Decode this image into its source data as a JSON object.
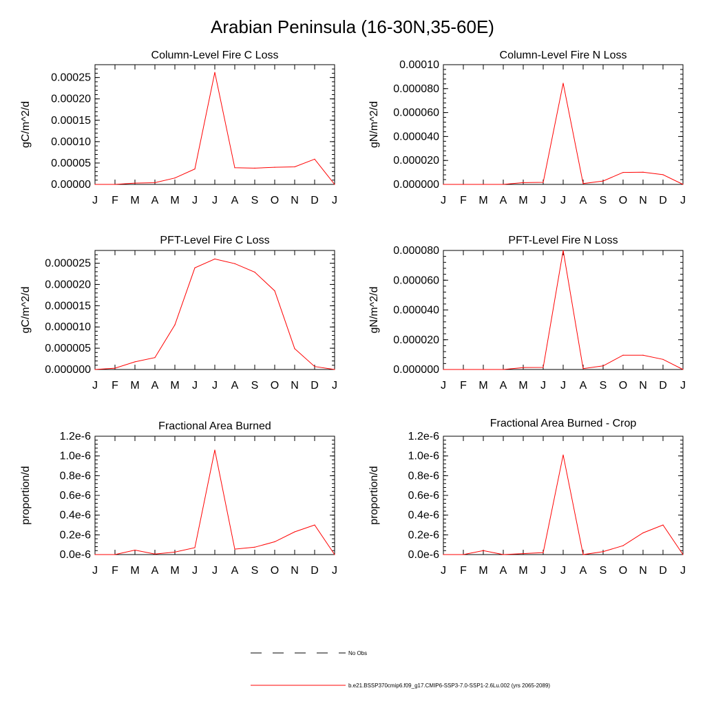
{
  "figure": {
    "title": "Arabian Peninsula (16-30N,35-60E)"
  },
  "legend": {
    "entries": [
      {
        "label": "No Obs",
        "color": "#000000",
        "dash": true
      },
      {
        "label": "b.e21.BSSP370cmip6.f09_g17.CMIP6-SSP3-7.0-SSP1-2.6Lu.002 (yrs 2065-2089)",
        "color": "#ff0000",
        "dash": false
      }
    ]
  },
  "chart_data": [
    {
      "type": "line",
      "title": "Column-Level Fire C Loss",
      "xlabel": "",
      "ylabel": "gC/m^2/d",
      "categories": [
        "J",
        "F",
        "M",
        "A",
        "M",
        "J",
        "J",
        "A",
        "S",
        "O",
        "N",
        "D",
        "J"
      ],
      "ylim": [
        0,
        0.00028
      ],
      "ytick_values": [
        0,
        5e-05,
        0.0001,
        0.00015,
        0.0002,
        0.00025
      ],
      "ytick_labels": [
        "0.00000",
        "0.00005",
        "0.00010",
        "0.00015",
        "0.00020",
        "0.00025"
      ],
      "series": [
        {
          "color": "#ff0000",
          "values": [
            0.0,
            0.0,
            3e-06,
            4e-06,
            1.5e-05,
            3.6e-05,
            0.000262,
            3.9e-05,
            3.8e-05,
            4e-05,
            4.1e-05,
            5.9e-05,
            0.0
          ]
        }
      ]
    },
    {
      "type": "line",
      "title": "Column-Level Fire N Loss",
      "xlabel": "",
      "ylabel": "gN/m^2/d",
      "categories": [
        "J",
        "F",
        "M",
        "A",
        "M",
        "J",
        "J",
        "A",
        "S",
        "O",
        "N",
        "D",
        "J"
      ],
      "ylim": [
        0,
        0.0001
      ],
      "ytick_values": [
        0,
        2e-05,
        4e-05,
        6e-05,
        8e-05,
        0.0001
      ],
      "ytick_labels": [
        "0.000000",
        "0.000020",
        "0.000040",
        "0.000060",
        "0.000080",
        "0.00010"
      ],
      "series": [
        {
          "color": "#ff0000",
          "values": [
            0.0,
            0.0,
            0.0,
            0.0,
            1.5e-06,
            1.7e-06,
            8.45e-05,
            7e-07,
            2.8e-06,
            1e-05,
            1.02e-05,
            8.1e-06,
            0.0
          ]
        }
      ]
    },
    {
      "type": "line",
      "title": "PFT-Level Fire C Loss",
      "xlabel": "",
      "ylabel": "gC/m^2/d",
      "categories": [
        "J",
        "F",
        "M",
        "A",
        "M",
        "J",
        "J",
        "A",
        "S",
        "O",
        "N",
        "D",
        "J"
      ],
      "ylim": [
        0,
        2.8e-05
      ],
      "ytick_values": [
        0,
        5e-06,
        1e-05,
        1.5e-05,
        2e-05,
        2.5e-05
      ],
      "ytick_labels": [
        "0.000000",
        "0.000005",
        "0.000010",
        "0.000015",
        "0.000020",
        "0.000025"
      ],
      "series": [
        {
          "color": "#ff0000",
          "values": [
            0.0,
            3e-07,
            1.8e-06,
            2.8e-06,
            1.05e-05,
            2.39e-05,
            2.6e-05,
            2.49e-05,
            2.29e-05,
            1.85e-05,
            4.9e-06,
            7e-07,
            0.0
          ]
        }
      ]
    },
    {
      "type": "line",
      "title": "PFT-Level Fire N Loss",
      "xlabel": "",
      "ylabel": "gN/m^2/d",
      "categories": [
        "J",
        "F",
        "M",
        "A",
        "M",
        "J",
        "J",
        "A",
        "S",
        "O",
        "N",
        "D",
        "J"
      ],
      "ylim": [
        0,
        8e-05
      ],
      "ytick_values": [
        0,
        2e-05,
        4e-05,
        6e-05,
        8e-05
      ],
      "ytick_labels": [
        "0.000000",
        "0.000020",
        "0.000040",
        "0.000060",
        "0.000080"
      ],
      "series": [
        {
          "color": "#ff0000",
          "values": [
            0.0,
            0.0,
            0.0,
            0.0,
            1.3e-06,
            1.4e-06,
            8e-05,
            6e-07,
            2.4e-06,
            9.6e-06,
            9.6e-06,
            6.8e-06,
            0.0
          ]
        }
      ]
    },
    {
      "type": "line",
      "title": "Fractional Area Burned",
      "xlabel": "",
      "ylabel": "proportion/d",
      "categories": [
        "J",
        "F",
        "M",
        "A",
        "M",
        "J",
        "J",
        "A",
        "S",
        "O",
        "N",
        "D",
        "J"
      ],
      "ylim": [
        0,
        1.2e-06
      ],
      "ytick_values": [
        0,
        2e-07,
        4e-07,
        6e-07,
        8e-07,
        1e-06,
        1.2e-06
      ],
      "ytick_labels": [
        "0.0e-6",
        "0.2e-6",
        "0.4e-6",
        "0.6e-6",
        "0.8e-6",
        "1.0e-6",
        "1.2e-6"
      ],
      "series": [
        {
          "color": "#ff0000",
          "values": [
            0.0,
            0.0,
            4.5e-08,
            5e-09,
            2.5e-08,
            7e-08,
            1.06e-06,
            5.5e-08,
            7.5e-08,
            1.3e-07,
            2.3e-07,
            3e-07,
            0.0
          ]
        }
      ]
    },
    {
      "type": "line",
      "title": "Fractional Area Burned - Crop",
      "xlabel": "",
      "ylabel": "proportion/d",
      "categories": [
        "J",
        "F",
        "M",
        "A",
        "M",
        "J",
        "J",
        "A",
        "S",
        "O",
        "N",
        "D",
        "J"
      ],
      "ylim": [
        0,
        1.2e-06
      ],
      "ytick_values": [
        0,
        2e-07,
        4e-07,
        6e-07,
        8e-07,
        1e-06,
        1.2e-06
      ],
      "ytick_labels": [
        "0.0e-6",
        "0.2e-6",
        "0.4e-6",
        "0.6e-6",
        "0.8e-6",
        "1.0e-6",
        "1.2e-6"
      ],
      "series": [
        {
          "color": "#ff0000",
          "values": [
            0.0,
            0.0,
            4e-08,
            0.0,
            1e-08,
            2e-08,
            1.01e-06,
            0.0,
            3e-08,
            9e-08,
            2.2e-07,
            3e-07,
            0.0
          ]
        }
      ]
    }
  ]
}
